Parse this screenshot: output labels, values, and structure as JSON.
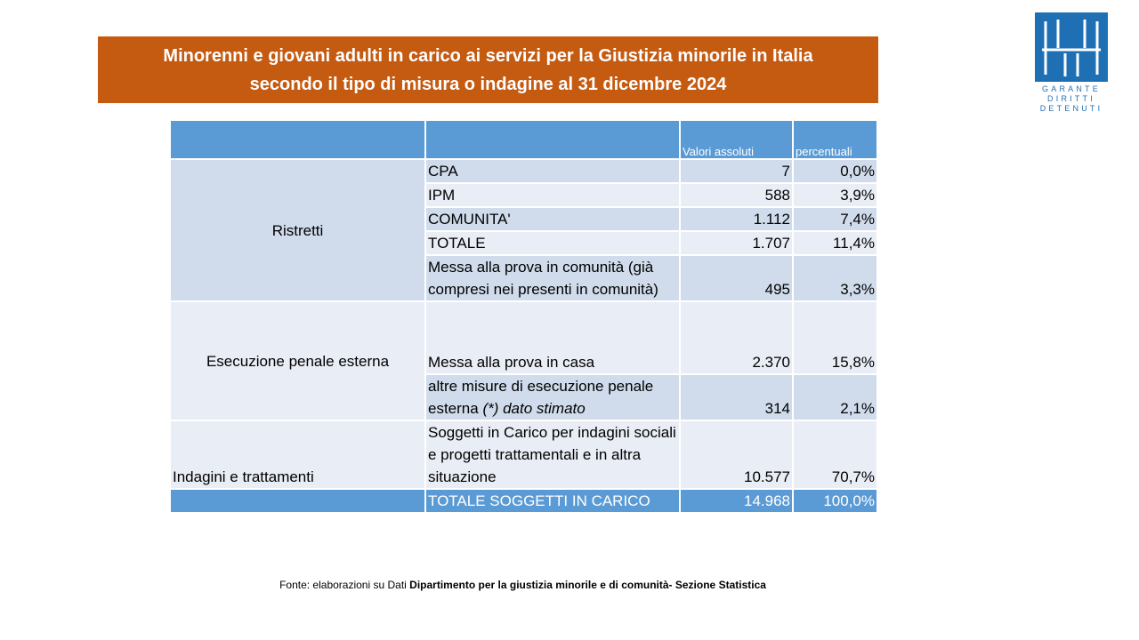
{
  "title": {
    "line1": "Minorenni e giovani adulti in carico ai servizi per la Giustizia minorile in Italia",
    "line2": "secondo il tipo di misura o indagine al 31 dicembre 2024"
  },
  "logo": {
    "icon": "garante-logo-icon",
    "line1": "GARANTE",
    "line2": "DIRITTI",
    "line3": "DETENUTI",
    "color": "#1f6fb5"
  },
  "table": {
    "headers": {
      "group": "",
      "measure": "",
      "absolute": "Valori assoluti",
      "percent": "percentuali"
    },
    "groups": {
      "ristretti": "Ristretti",
      "esecuzione": "Esecuzione  penale esterna",
      "indagini": "Indagini e trattamenti"
    },
    "rows": [
      {
        "label": "CPA",
        "value": "7",
        "pct": "0,0%"
      },
      {
        "label": "IPM",
        "value": "588",
        "pct": "3,9%"
      },
      {
        "label": "COMUNITA'",
        "value": "1.112",
        "pct": "7,4%"
      },
      {
        "label": "TOTALE",
        "value": "1.707",
        "pct": "11,4%"
      },
      {
        "label": "Messa alla prova in comunità (già compresi nei presenti in comunità)",
        "value": "495",
        "pct": "3,3%"
      },
      {
        "label": "Messa alla prova in casa",
        "value": "2.370",
        "pct": "15,8%"
      },
      {
        "label": "altre misure di esecuzione penale esterna",
        "label_italic": "(*) dato stimato",
        "value": "314",
        "pct": "2,1%"
      },
      {
        "label": "Soggetti in Carico per indagini sociali e progetti trattamentali e in altra situazione",
        "value": "10.577",
        "pct": "70,7%"
      }
    ],
    "total": {
      "label": "TOTALE  SOGGETTI  IN CARICO",
      "value": "14.968",
      "pct": "100,0%"
    }
  },
  "source": {
    "prefix": "Fonte: elaborazioni su Dati ",
    "bold": "Dipartimento per la giustizia minorile e di comunità- Sezione Statistica"
  },
  "colors": {
    "banner": "#c55a11",
    "header": "#5b9bd5",
    "row_dark": "#d0dcec",
    "row_light": "#e9edf5"
  }
}
